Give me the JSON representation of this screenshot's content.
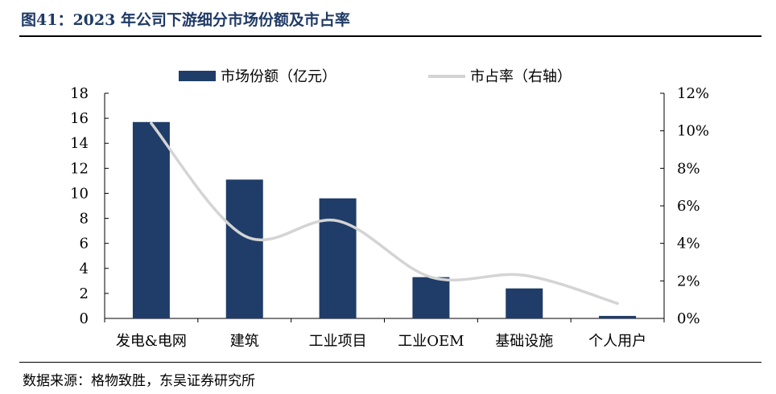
{
  "figure_title": "图41：2023 年公司下游细分市场份额及市占率",
  "source": "数据来源：格物致胜，东吴证券研究所",
  "chart_data": {
    "type": "bar",
    "categories": [
      "发电&电网",
      "建筑",
      "工业项目",
      "工业OEM",
      "基础设施",
      "个人用户"
    ],
    "series": [
      {
        "name": "市场份额（亿元）",
        "type": "bar",
        "axis": "left",
        "values": [
          15.7,
          11.1,
          9.6,
          3.3,
          2.4,
          0.2
        ],
        "color": "#1f3d68"
      },
      {
        "name": "市占率（右轴）",
        "type": "line",
        "axis": "right",
        "values": [
          10.4,
          4.4,
          5.2,
          2.2,
          2.3,
          0.8
        ],
        "color": "#d4d4d4"
      }
    ],
    "y_left": {
      "ylim": [
        0,
        18
      ],
      "ticks": [
        "0",
        "2",
        "4",
        "6",
        "8",
        "10",
        "12",
        "14",
        "16",
        "18"
      ]
    },
    "y_right": {
      "ylim": [
        0,
        12
      ],
      "ticks": [
        "0%",
        "2%",
        "4%",
        "6%",
        "8%",
        "10%",
        "12%"
      ]
    },
    "legend_position": "top-center",
    "grid": false
  }
}
